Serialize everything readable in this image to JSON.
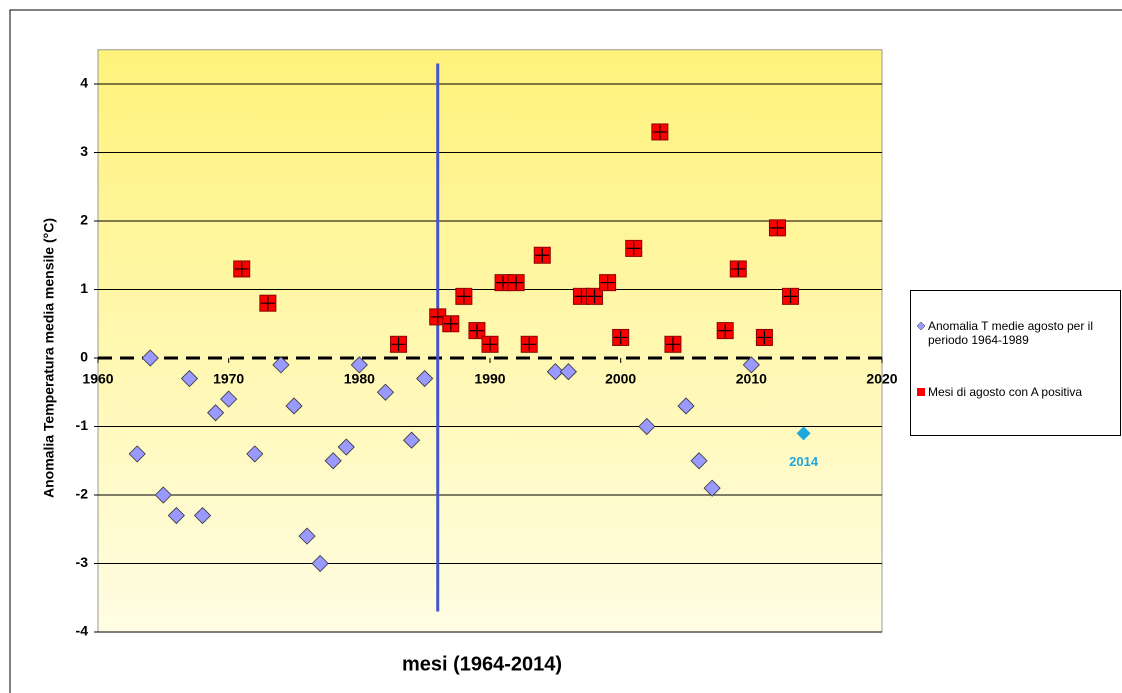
{
  "chart_data": {
    "type": "scatter",
    "x_label": "mesi (1964-2014)",
    "y_label": "Anomalia  Temperatura media mensile (°C)",
    "xlim": [
      1960,
      2020
    ],
    "xticks": [
      1960,
      1970,
      1980,
      1990,
      2000,
      2010,
      2020
    ],
    "ylim": [
      -4,
      4.5
    ],
    "yticks": [
      -4,
      -3,
      -2,
      -1,
      0,
      1,
      2,
      3,
      4
    ],
    "grid": true,
    "series": [
      {
        "name": "Anomalia T medie agosto per il periodo 1964-1989",
        "color": "#9999ff",
        "marker": "diamond",
        "x": [
          1963,
          1964,
          1965,
          1966,
          1967,
          1968,
          1969,
          1970,
          1972,
          1974,
          1975,
          1976,
          1977,
          1978,
          1979,
          1980,
          1982,
          1984,
          1985,
          1995,
          1996,
          2002,
          2005,
          2006,
          2007,
          2010
        ],
        "values": [
          -1.4,
          0,
          -2.0,
          -2.3,
          -0.3,
          -2.3,
          -0.8,
          -0.6,
          -1.4,
          -0.1,
          -0.7,
          -2.6,
          -3.0,
          -1.5,
          -1.3,
          -0.1,
          -0.5,
          -1.2,
          -0.3,
          -0.2,
          -0.2,
          -1.0,
          -0.7,
          -1.5,
          -1.9,
          -0.1
        ]
      },
      {
        "name": "Mesi di agosto con A  positiva",
        "color": "#ff0000",
        "marker": "square",
        "x": [
          1971,
          1973,
          1983,
          1986,
          1987,
          1988,
          1989,
          1990,
          1991,
          1992,
          1993,
          1994,
          1997,
          1998,
          1999,
          2000,
          2001,
          2003,
          2004,
          2008,
          2009,
          2011,
          2012,
          2013
        ],
        "values": [
          1.3,
          0.8,
          0.2,
          0.6,
          0.5,
          0.9,
          0.4,
          0.2,
          1.1,
          1.1,
          0.2,
          1.5,
          0.9,
          0.9,
          1.1,
          0.3,
          1.6,
          3.3,
          0.2,
          0.4,
          1.3,
          0.3,
          1.9,
          0.9
        ]
      }
    ],
    "highlight": {
      "x": 2014,
      "y": -1.1,
      "label": "2014",
      "color": "#1fa8e0"
    },
    "vline": {
      "x": 1986,
      "ymin": -3.7,
      "ymax": 4.3,
      "color": "#4455cc"
    }
  }
}
